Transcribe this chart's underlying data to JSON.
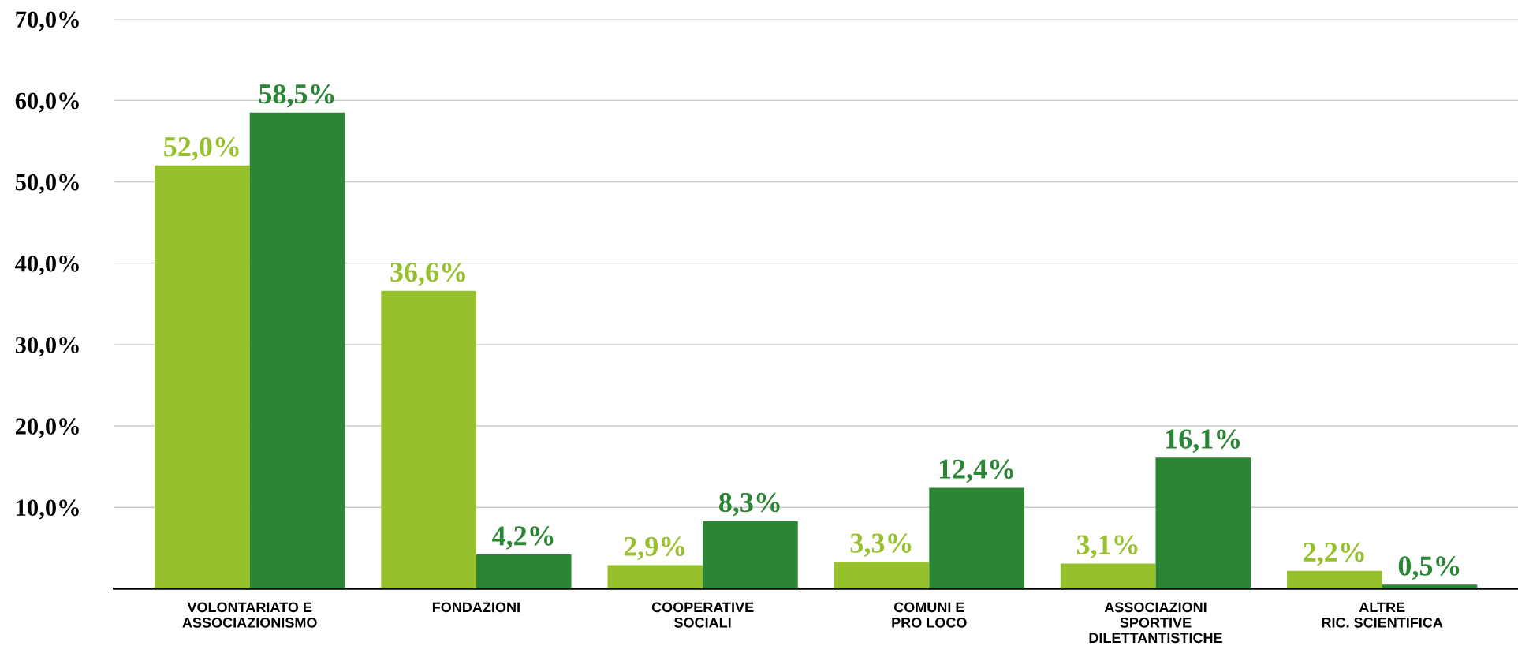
{
  "chart_data": {
    "type": "bar",
    "categories": [
      "VOLONTARIATO E\nASSOCIAZIONISMO",
      "FONDAZIONI",
      "COOPERATIVE\nSOCIALI",
      "COMUNI E\nPRO LOCO",
      "ASSOCIAZIONI\nSPORTIVE\nDILETTANTISTICHE",
      "ALTRE\nRIC. SCIENTIFICA"
    ],
    "series": [
      {
        "color": "#97c02d",
        "values": [
          52.0,
          36.6,
          2.9,
          3.3,
          3.1,
          2.2
        ],
        "value_labels": [
          "52,0%",
          "36,6%",
          "2,9%",
          "3,3%",
          "3,1%",
          "2,2%"
        ]
      },
      {
        "color": "#2a8535",
        "values": [
          58.5,
          4.2,
          8.3,
          12.4,
          16.1,
          0.5
        ],
        "value_labels": [
          "58,5%",
          "4,2%",
          "8,3%",
          "12,4%",
          "16,1%",
          "0,5%"
        ]
      }
    ],
    "ylim": [
      0,
      70
    ],
    "yticks": [
      {
        "value": 10,
        "label": "10,0%"
      },
      {
        "value": 20,
        "label": "20,0%"
      },
      {
        "value": 30,
        "label": "30,0%"
      },
      {
        "value": 40,
        "label": "40,0%"
      },
      {
        "value": 50,
        "label": "50,0%"
      },
      {
        "value": 60,
        "label": "60,0%"
      },
      {
        "value": 70,
        "label": "70,0%"
      }
    ],
    "grid": "y",
    "legend": false
  }
}
